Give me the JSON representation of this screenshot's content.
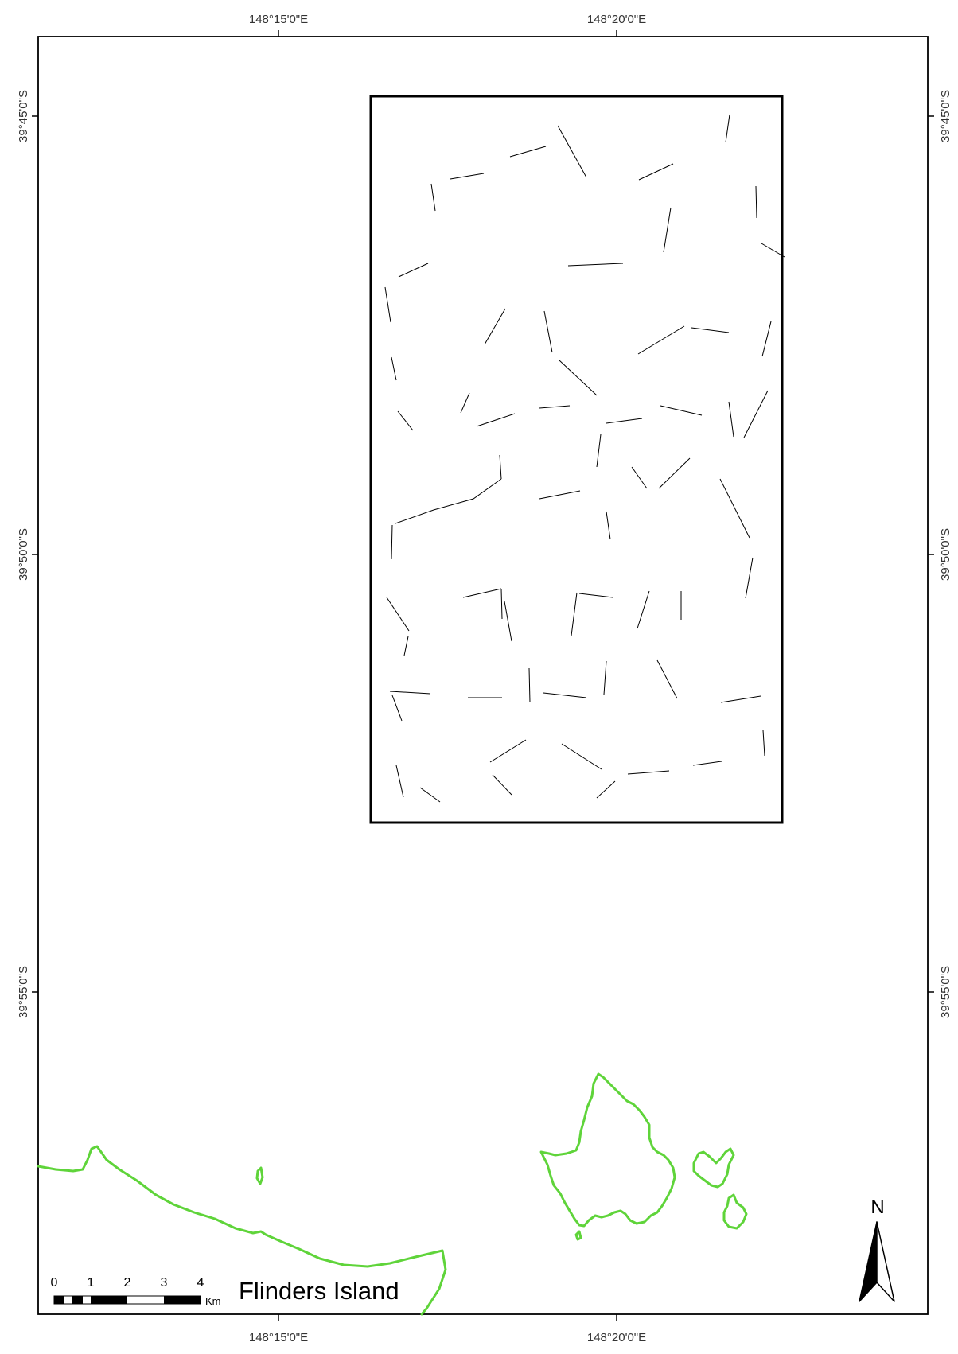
{
  "colors": {
    "coastline": "#5fd43a",
    "frame": "#000000",
    "transects": "#000000",
    "tick_text": "#333333"
  },
  "ticks": {
    "top": [
      "148°15'0\"E",
      "148°20'0\"E"
    ],
    "bottom": [
      "148°15'0\"E",
      "148°20'0\"E"
    ],
    "left": [
      "39°45'0\"S",
      "39°50'0\"S",
      "39°55'0\"S"
    ],
    "right": [
      "39°45'0\"S",
      "39°50'0\"S",
      "39°55'0\"S"
    ]
  },
  "scale_bar": {
    "labels": [
      "0",
      "1",
      "2",
      "3",
      "4"
    ],
    "unit": "Km"
  },
  "place_label": "Flinders Island",
  "north_arrow": {
    "label": "N",
    "icon": "north-arrow-icon"
  }
}
